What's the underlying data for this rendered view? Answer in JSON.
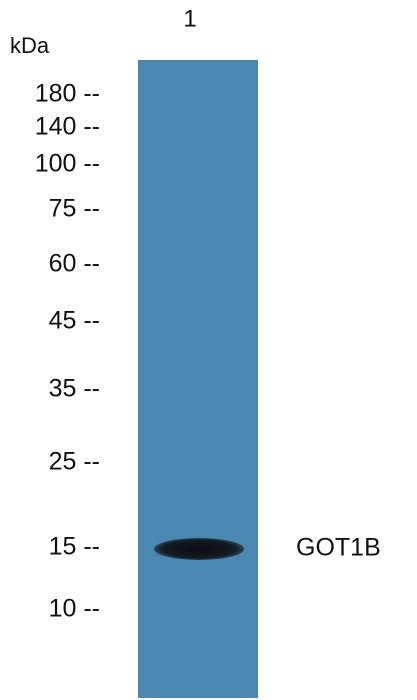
{
  "lane_label": "1",
  "unit": "kDa",
  "markers": [
    "180 --",
    "140 --",
    "100 --",
    "75 --",
    "60 --",
    "45 --",
    "35 --",
    "25 --",
    "15 --",
    "10 --"
  ],
  "band_label": "GOT1B"
}
